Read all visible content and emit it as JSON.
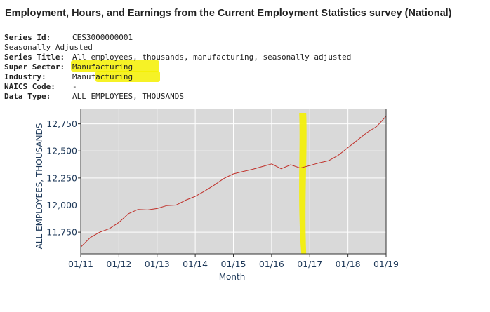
{
  "page": {
    "title": "Employment, Hours, and Earnings from the Current Employment Statistics survey (National)"
  },
  "series_info": {
    "rows": [
      {
        "label": "Series Id:",
        "value": "CES3000000001",
        "bold": true
      },
      {
        "label": "Seasonally Adjusted",
        "value": "",
        "bold": false
      },
      {
        "label": "Series Title:",
        "value": "All employees, thousands, manufacturing, seasonally adjusted",
        "bold": true
      },
      {
        "label": "Super Sector:",
        "value": "Manufacturing",
        "bold": true
      },
      {
        "label": "Industry:",
        "value": "Manufacturing",
        "bold": true
      },
      {
        "label": "NAICS Code:",
        "value": "-",
        "bold": true
      },
      {
        "label": "Data Type:",
        "value": "ALL EMPLOYEES, THOUSANDS",
        "bold": true
      }
    ]
  },
  "colors": {
    "plot_bg": "#d9d9d9",
    "line": "#c0302a",
    "grid": "#ffffff",
    "axis_text": "#1f3a5a",
    "highlight": "#f4f000"
  },
  "chart_data": {
    "type": "line",
    "xlabel": "Month",
    "ylabel": "ALL EMPLOYEES, THOUSANDS",
    "xlim": [
      "2011-01",
      "2019-01"
    ],
    "ylim": [
      11550,
      12890
    ],
    "x_ticks": [
      "01/11",
      "01/12",
      "01/13",
      "01/14",
      "01/15",
      "01/16",
      "01/17",
      "01/18",
      "01/19"
    ],
    "y_ticks": [
      {
        "value": 11750,
        "label": "11,750"
      },
      {
        "value": 12000,
        "label": "12,000"
      },
      {
        "value": 12250,
        "label": "12,250"
      },
      {
        "value": 12500,
        "label": "12,500"
      },
      {
        "value": 12750,
        "label": "12,750"
      }
    ],
    "grid": true,
    "series": [
      {
        "x": [
          "2011-01",
          "2011-04",
          "2011-07",
          "2011-10",
          "2012-01",
          "2012-04",
          "2012-07",
          "2012-10",
          "2013-01",
          "2013-04",
          "2013-07",
          "2013-10",
          "2014-01",
          "2014-04",
          "2014-07",
          "2014-10",
          "2015-01",
          "2015-04",
          "2015-07",
          "2015-10",
          "2016-01",
          "2016-04",
          "2016-07",
          "2016-10",
          "2017-01",
          "2017-04",
          "2017-07",
          "2017-10",
          "2018-01",
          "2018-04",
          "2018-07",
          "2018-10",
          "2019-01"
        ],
        "values": [
          11612,
          11700,
          11750,
          11782,
          11840,
          11920,
          11960,
          11955,
          11968,
          11995,
          12000,
          12045,
          12080,
          12130,
          12185,
          12245,
          12288,
          12310,
          12330,
          12355,
          12380,
          12335,
          12372,
          12342,
          12365,
          12390,
          12410,
          12460,
          12530,
          12600,
          12670,
          12725,
          12820
        ]
      }
    ],
    "annotation": {
      "type": "highlight-band",
      "x": "2016-11",
      "color": "#f4f000"
    }
  }
}
